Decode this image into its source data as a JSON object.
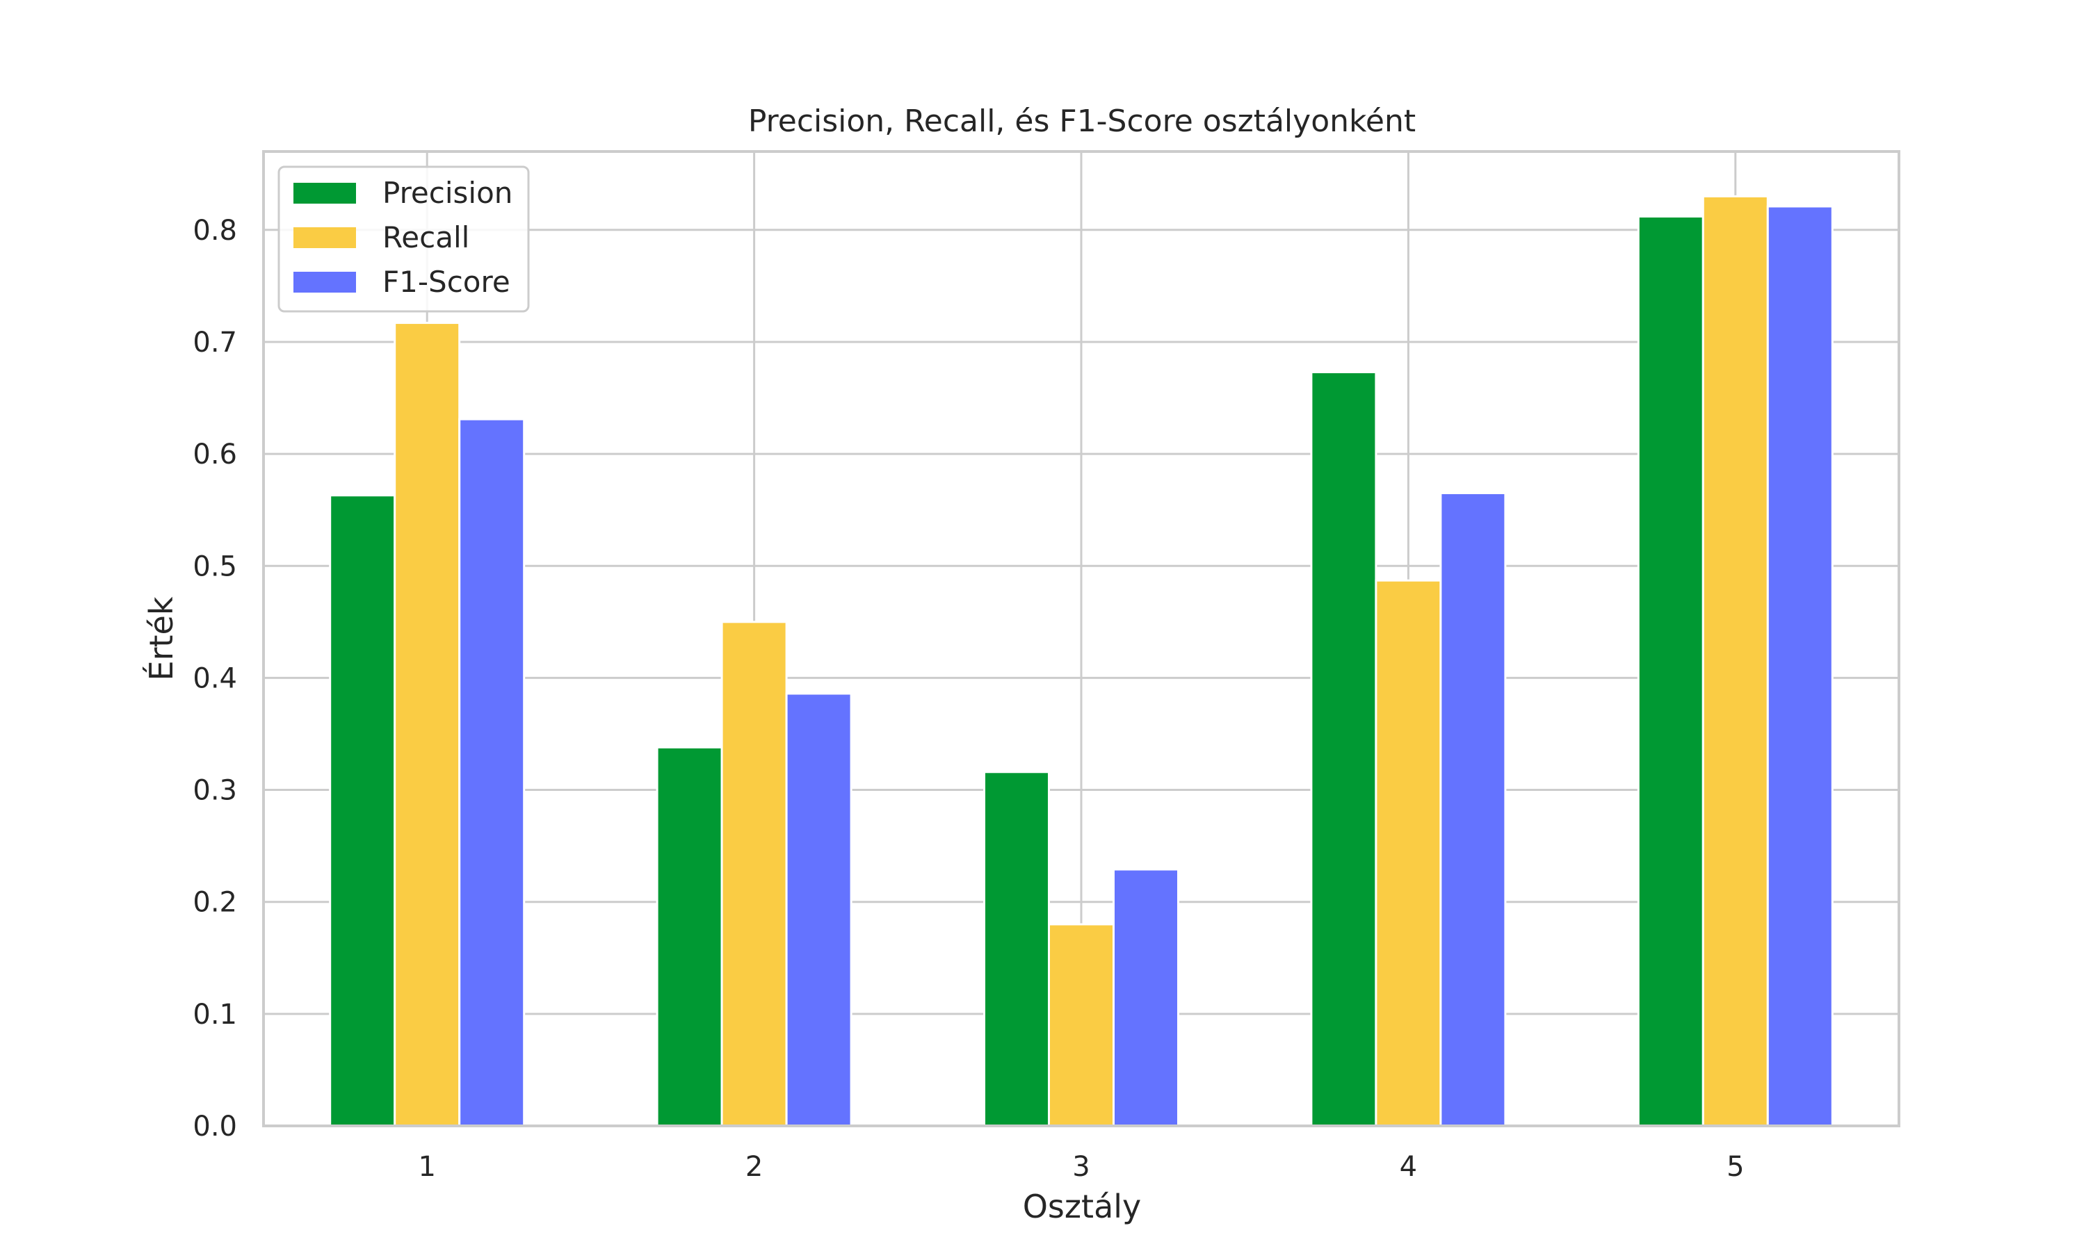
{
  "chart_data": {
    "type": "bar",
    "title": "Precision, Recall, és F1-Score osztályonként",
    "xlabel": "Osztály",
    "ylabel": "Érték",
    "categories": [
      "1",
      "2",
      "3",
      "4",
      "5"
    ],
    "series": [
      {
        "name": "Precision",
        "color": "#009933",
        "values": [
          0.563,
          0.338,
          0.316,
          0.673,
          0.812
        ]
      },
      {
        "name": "Recall",
        "color": "#facc44",
        "values": [
          0.717,
          0.45,
          0.18,
          0.487,
          0.83
        ]
      },
      {
        "name": "F1-Score",
        "color": "#6473ff",
        "values": [
          0.631,
          0.386,
          0.229,
          0.565,
          0.821
        ]
      }
    ],
    "ylim": [
      0,
      0.87
    ],
    "yticks": [
      "0.0",
      "0.1",
      "0.2",
      "0.3",
      "0.4",
      "0.5",
      "0.6",
      "0.7",
      "0.8"
    ],
    "grid": true,
    "legend_position": "top-left"
  }
}
